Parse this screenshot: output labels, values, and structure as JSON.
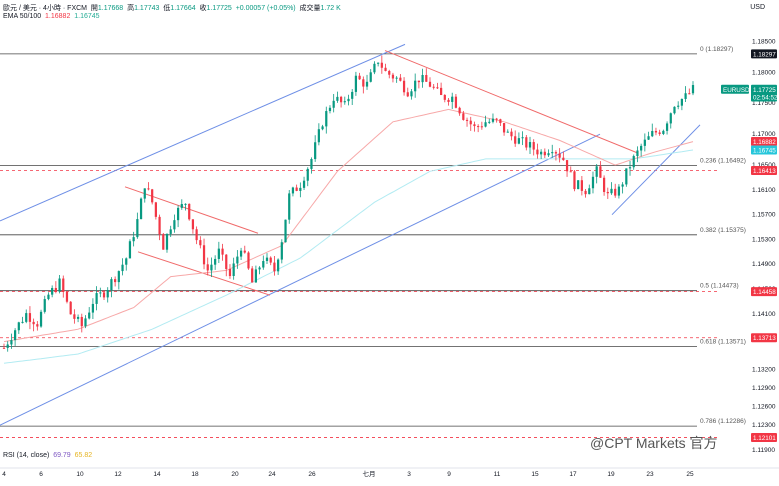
{
  "header": {
    "symbol_line": "歐元 / 美元 · 4小時 · FXCM",
    "open_label": "開",
    "open": "1.17668",
    "high_label": "高",
    "high": "1.17743",
    "low_label": "低",
    "low": "1.17664",
    "close_label": "收",
    "close": "1.17725",
    "change": "+0.00057 (+0.05%)",
    "volume_label": "成交量",
    "volume": "1.72 K",
    "ema_label": "EMA 50/100",
    "ema50": "1.16882",
    "ema100": "1.16745"
  },
  "currency": "USD",
  "rsi": {
    "label": "RSI (14, close)",
    "v1": "69.79",
    "v2": "65.82"
  },
  "watermark": "@CPT Markets 官方",
  "colors": {
    "up": "#089981",
    "down": "#f23645",
    "ema50": "#f7a8a8",
    "ema100": "#b2ebf2",
    "channel": "#6e8fe6",
    "trendline_red": "#f06a6a",
    "hline": "#444444"
  },
  "chart_data": {
    "type": "candlestick",
    "ylim": [
      1.119,
      1.1865
    ],
    "y_ticks": [
      "1.18500",
      "1.18000",
      "1.17500",
      "1.17000",
      "1.16500",
      "1.16100",
      "1.15700",
      "1.15300",
      "1.14900",
      "1.14500",
      "1.14100",
      "1.13700",
      "1.13200",
      "1.12900",
      "1.12600",
      "1.12300",
      "1.11900"
    ],
    "x_ticks": [
      "4",
      "6",
      "10",
      "12",
      "14",
      "18",
      "20",
      "24",
      "26",
      "七月",
      "3",
      "9",
      "11",
      "15",
      "17",
      "19",
      "23",
      "25"
    ],
    "fib_levels": [
      {
        "label": "0 (1.18297)",
        "price": 1.18297
      },
      {
        "label": "0.236 (1.16492)",
        "price": 1.16492
      },
      {
        "label": "0.382 (1.15375)",
        "price": 1.15375
      },
      {
        "label": "0.5 (1.14473)",
        "price": 1.14473
      },
      {
        "label": "0.618 (1.13571)",
        "price": 1.13571
      },
      {
        "label": "0.786 (1.12286)",
        "price": 1.12286
      }
    ],
    "price_badges": [
      {
        "label": "1.18297",
        "price": 1.18297,
        "style": "dark"
      },
      {
        "label": "EURUSD",
        "price": 1.17725,
        "style": "green-name"
      },
      {
        "label": "1.17725",
        "price": 1.17725,
        "style": "green"
      },
      {
        "label": "02:54:52",
        "price": 1.176,
        "style": "green-sub"
      },
      {
        "label": "1.16882",
        "price": 1.16882,
        "style": "red"
      },
      {
        "label": "1.16745",
        "price": 1.16745,
        "style": "cyan"
      },
      {
        "label": "1.16413",
        "price": 1.16413,
        "style": "red"
      },
      {
        "label": "1.14458",
        "price": 1.14458,
        "style": "red"
      },
      {
        "label": "1.13713",
        "price": 1.13713,
        "style": "red"
      },
      {
        "label": "1.12101",
        "price": 1.12101,
        "style": "red"
      }
    ],
    "red_dashed_levels": [
      1.16413,
      1.14458,
      1.13713,
      1.12101
    ],
    "solid_levels": [
      1.18297,
      1.16492,
      1.15375,
      1.14473,
      1.13571,
      1.12286
    ],
    "waypoints": [
      [
        0,
        1.1355
      ],
      [
        3,
        1.1385
      ],
      [
        6,
        1.141
      ],
      [
        9,
        1.1395
      ],
      [
        12,
        1.144
      ],
      [
        15,
        1.146
      ],
      [
        18,
        1.141
      ],
      [
        21,
        1.139
      ],
      [
        24,
        1.143
      ],
      [
        27,
        1.1445
      ],
      [
        30,
        1.147
      ],
      [
        33,
        1.15
      ],
      [
        36,
        1.156
      ],
      [
        38,
        1.162
      ],
      [
        40,
        1.159
      ],
      [
        43,
        1.152
      ],
      [
        46,
        1.157
      ],
      [
        49,
        1.159
      ],
      [
        52,
        1.153
      ],
      [
        55,
        1.148
      ],
      [
        58,
        1.151
      ],
      [
        61,
        1.147
      ],
      [
        64,
        1.152
      ],
      [
        67,
        1.146
      ],
      [
        70,
        1.15
      ],
      [
        73,
        1.148
      ],
      [
        75,
        1.153
      ],
      [
        77,
        1.16
      ],
      [
        80,
        1.162
      ],
      [
        83,
        1.166
      ],
      [
        86,
        1.172
      ],
      [
        89,
        1.176
      ],
      [
        92,
        1.1745
      ],
      [
        95,
        1.179
      ],
      [
        98,
        1.178
      ],
      [
        101,
        1.182
      ],
      [
        103,
        1.18
      ],
      [
        106,
        1.179
      ],
      [
        109,
        1.177
      ],
      [
        112,
        1.179
      ],
      [
        115,
        1.178
      ],
      [
        118,
        1.176
      ],
      [
        121,
        1.176
      ],
      [
        124,
        1.173
      ],
      [
        127,
        1.171
      ],
      [
        130,
        1.172
      ],
      [
        133,
        1.172
      ],
      [
        136,
        1.17
      ],
      [
        139,
        1.169
      ],
      [
        142,
        1.168
      ],
      [
        145,
        1.167
      ],
      [
        148,
        1.168
      ],
      [
        151,
        1.166
      ],
      [
        154,
        1.162
      ],
      [
        157,
        1.161
      ],
      [
        160,
        1.164
      ],
      [
        163,
        1.16
      ],
      [
        166,
        1.161
      ],
      [
        169,
        1.165
      ],
      [
        172,
        1.168
      ],
      [
        175,
        1.17
      ],
      [
        178,
        1.171
      ],
      [
        181,
        1.175
      ],
      [
        184,
        1.176
      ],
      [
        186,
        1.1772
      ]
    ],
    "ema50_points": [
      [
        0,
        1.1365
      ],
      [
        20,
        1.1385
      ],
      [
        35,
        1.142
      ],
      [
        45,
        1.147
      ],
      [
        60,
        1.148
      ],
      [
        75,
        1.152
      ],
      [
        90,
        1.164
      ],
      [
        105,
        1.172
      ],
      [
        120,
        1.174
      ],
      [
        135,
        1.172
      ],
      [
        150,
        1.169
      ],
      [
        165,
        1.165
      ],
      [
        175,
        1.167
      ],
      [
        186,
        1.1688
      ]
    ],
    "ema100_points": [
      [
        0,
        1.133
      ],
      [
        20,
        1.1345
      ],
      [
        40,
        1.1385
      ],
      [
        60,
        1.144
      ],
      [
        80,
        1.15
      ],
      [
        100,
        1.159
      ],
      [
        115,
        1.164
      ],
      [
        130,
        1.166
      ],
      [
        150,
        1.166
      ],
      [
        170,
        1.166
      ],
      [
        186,
        1.16745
      ]
    ],
    "candle_count": 187
  }
}
